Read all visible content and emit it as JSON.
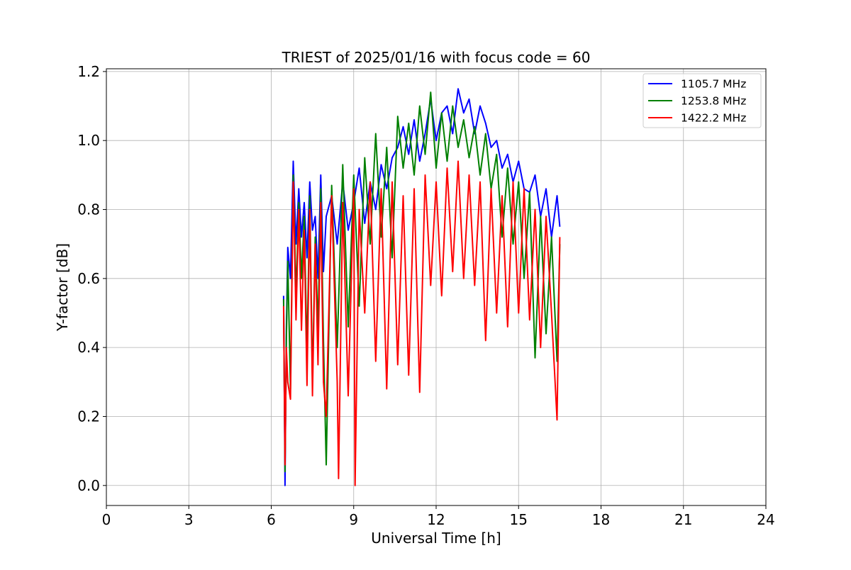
{
  "chart_data": {
    "type": "line",
    "title": "TRIEST of 2025/01/16 with focus code = 60",
    "xlabel": "Universal Time [h]",
    "ylabel": "Y-factor [dB]",
    "xlim": [
      0,
      24
    ],
    "ylim": [
      -0.058,
      1.208
    ],
    "xticks": [
      0,
      3,
      6,
      9,
      12,
      15,
      18,
      21,
      24
    ],
    "yticks": [
      0.0,
      0.2,
      0.4,
      0.6,
      0.8,
      1.0,
      1.2
    ],
    "ytick_labels": [
      "0.0",
      "0.2",
      "0.4",
      "0.6",
      "0.8",
      "1.0",
      "1.2"
    ],
    "grid": true,
    "legend_position": "top-right",
    "series": [
      {
        "name": "1105.7 MHz",
        "color": "#0000ff",
        "x": [
          6.45,
          6.5,
          6.55,
          6.6,
          6.7,
          6.8,
          6.9,
          7.0,
          7.1,
          7.2,
          7.3,
          7.4,
          7.5,
          7.6,
          7.7,
          7.8,
          7.9,
          8.0,
          8.2,
          8.4,
          8.6,
          8.8,
          9.0,
          9.2,
          9.4,
          9.6,
          9.8,
          10.0,
          10.2,
          10.4,
          10.6,
          10.8,
          11.0,
          11.2,
          11.4,
          11.6,
          11.8,
          12.0,
          12.2,
          12.4,
          12.6,
          12.8,
          13.0,
          13.2,
          13.4,
          13.6,
          13.8,
          14.0,
          14.2,
          14.4,
          14.6,
          14.8,
          15.0,
          15.2,
          15.4,
          15.6,
          15.8,
          16.0,
          16.2,
          16.4,
          16.5
        ],
        "values": [
          0.55,
          0.0,
          0.45,
          0.69,
          0.6,
          0.94,
          0.7,
          0.86,
          0.72,
          0.82,
          0.66,
          0.88,
          0.74,
          0.78,
          0.6,
          0.9,
          0.62,
          0.78,
          0.84,
          0.7,
          0.88,
          0.74,
          0.82,
          0.92,
          0.76,
          0.88,
          0.8,
          0.93,
          0.86,
          0.95,
          0.98,
          1.04,
          0.96,
          1.06,
          0.94,
          1.02,
          1.12,
          1.0,
          1.08,
          1.1,
          1.02,
          1.15,
          1.08,
          1.12,
          1.02,
          1.1,
          1.05,
          0.98,
          1.0,
          0.92,
          0.96,
          0.88,
          0.94,
          0.86,
          0.85,
          0.9,
          0.78,
          0.86,
          0.72,
          0.84,
          0.75
        ]
      },
      {
        "name": "1253.8 MHz",
        "color": "#008000",
        "x": [
          6.45,
          6.5,
          6.55,
          6.6,
          6.7,
          6.8,
          6.9,
          7.0,
          7.1,
          7.2,
          7.3,
          7.4,
          7.5,
          7.6,
          7.7,
          7.8,
          7.9,
          8.0,
          8.2,
          8.4,
          8.6,
          8.8,
          9.0,
          9.2,
          9.4,
          9.6,
          9.8,
          10.0,
          10.2,
          10.4,
          10.6,
          10.8,
          11.0,
          11.2,
          11.4,
          11.6,
          11.8,
          12.0,
          12.2,
          12.4,
          12.6,
          12.8,
          13.0,
          13.2,
          13.4,
          13.6,
          13.8,
          14.0,
          14.2,
          14.4,
          14.6,
          14.8,
          15.0,
          15.2,
          15.4,
          15.6,
          15.8,
          16.0,
          16.2,
          16.4,
          16.5
        ],
        "values": [
          0.54,
          0.04,
          0.42,
          0.65,
          0.28,
          0.9,
          0.55,
          0.82,
          0.6,
          0.78,
          0.38,
          0.84,
          0.3,
          0.72,
          0.45,
          0.86,
          0.42,
          0.06,
          0.87,
          0.4,
          0.93,
          0.46,
          0.9,
          0.52,
          0.95,
          0.7,
          1.02,
          0.72,
          0.98,
          0.66,
          1.07,
          0.92,
          1.05,
          0.9,
          1.1,
          0.96,
          1.14,
          0.92,
          1.08,
          0.94,
          1.1,
          0.98,
          1.06,
          0.95,
          1.04,
          0.9,
          1.02,
          0.86,
          0.96,
          0.72,
          0.92,
          0.7,
          0.88,
          0.6,
          0.85,
          0.37,
          0.78,
          0.44,
          0.72,
          0.36,
          0.7
        ]
      },
      {
        "name": "1422.2 MHz",
        "color": "#ff0000",
        "x": [
          6.45,
          6.5,
          6.55,
          6.6,
          6.7,
          6.8,
          6.9,
          7.0,
          7.1,
          7.2,
          7.3,
          7.4,
          7.5,
          7.6,
          7.7,
          7.8,
          7.9,
          8.0,
          8.2,
          8.4,
          8.45,
          8.6,
          8.8,
          9.0,
          9.05,
          9.2,
          9.4,
          9.6,
          9.8,
          10.0,
          10.2,
          10.4,
          10.6,
          10.8,
          11.0,
          11.2,
          11.4,
          11.6,
          11.8,
          12.0,
          12.2,
          12.4,
          12.6,
          12.8,
          13.0,
          13.2,
          13.4,
          13.6,
          13.8,
          14.0,
          14.2,
          14.4,
          14.6,
          14.8,
          15.0,
          15.2,
          15.4,
          15.6,
          15.8,
          16.0,
          16.2,
          16.4,
          16.5
        ],
        "values": [
          0.52,
          0.06,
          0.4,
          0.3,
          0.25,
          0.88,
          0.48,
          0.8,
          0.45,
          0.74,
          0.29,
          0.8,
          0.26,
          0.7,
          0.35,
          0.82,
          0.3,
          0.2,
          0.84,
          0.3,
          0.02,
          0.82,
          0.26,
          0.86,
          0.0,
          0.8,
          0.5,
          0.88,
          0.36,
          0.86,
          0.28,
          0.88,
          0.35,
          0.84,
          0.32,
          0.86,
          0.27,
          0.9,
          0.58,
          0.88,
          0.55,
          0.92,
          0.62,
          0.94,
          0.6,
          0.9,
          0.58,
          0.88,
          0.42,
          0.86,
          0.5,
          0.84,
          0.46,
          0.88,
          0.5,
          0.86,
          0.48,
          0.8,
          0.4,
          0.78,
          0.5,
          0.19,
          0.72
        ]
      }
    ]
  }
}
